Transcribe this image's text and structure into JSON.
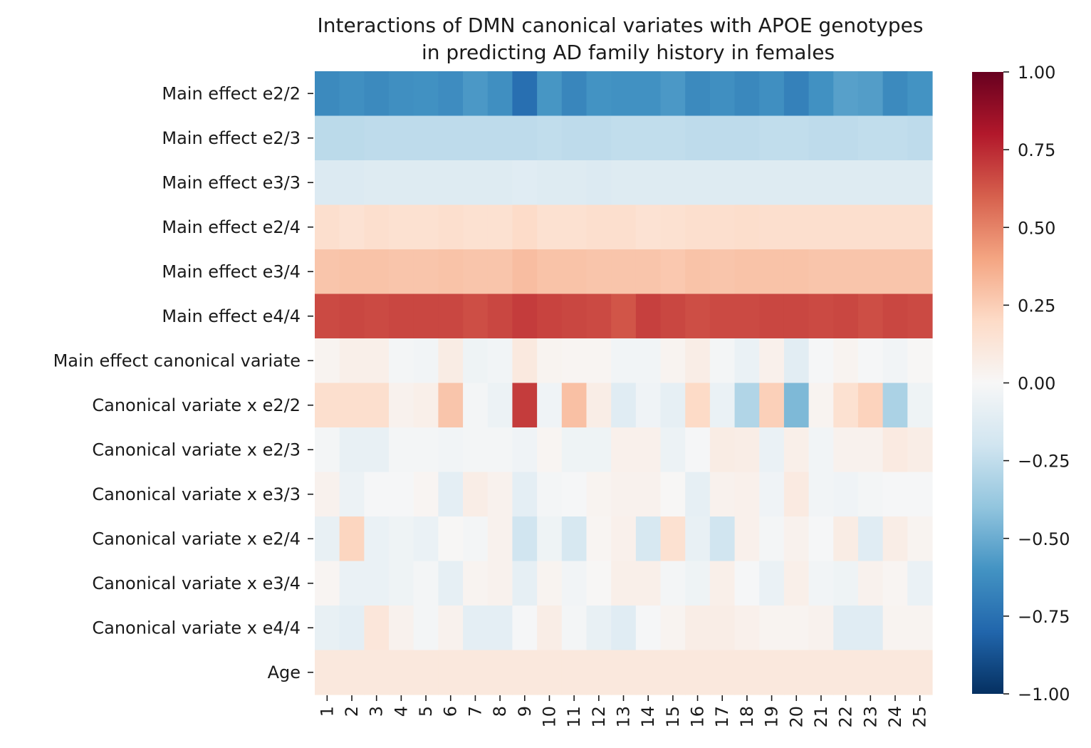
{
  "chart_data": {
    "type": "heatmap",
    "title_lines": [
      "Interactions of DMN canonical variates with APOE genotypes",
      "in predicting AD family history in females"
    ],
    "xlabel": "",
    "ylabel": "",
    "colormap": "RdBu_r",
    "vmin": -1.0,
    "vmax": 1.0,
    "colorbar_ticks": [
      "1.00",
      "0.75",
      "0.50",
      "0.25",
      "0.00",
      "−0.25",
      "−0.50",
      "−0.75",
      "−1.00"
    ],
    "colorbar_tick_values": [
      1.0,
      0.75,
      0.5,
      0.25,
      0.0,
      -0.25,
      -0.5,
      -0.75,
      -1.0
    ],
    "columns": [
      "1",
      "2",
      "3",
      "4",
      "5",
      "6",
      "7",
      "8",
      "9",
      "10",
      "11",
      "12",
      "13",
      "14",
      "15",
      "16",
      "17",
      "18",
      "19",
      "20",
      "21",
      "22",
      "23",
      "24",
      "25"
    ],
    "rows": [
      "Main effect e2/2",
      "Main effect e2/3",
      "Main effect e3/3",
      "Main effect e2/4",
      "Main effect e3/4",
      "Main effect e4/4",
      "Main effect canonical variate",
      "Canonical variate x e2/2",
      "Canonical variate x e2/3",
      "Canonical variate x e3/3",
      "Canonical variate x e2/4",
      "Canonical variate x e3/4",
      "Canonical variate x e4/4",
      "Age"
    ],
    "values": [
      [
        -0.64,
        -0.62,
        -0.64,
        -0.62,
        -0.61,
        -0.63,
        -0.58,
        -0.62,
        -0.76,
        -0.59,
        -0.66,
        -0.6,
        -0.61,
        -0.61,
        -0.58,
        -0.64,
        -0.62,
        -0.65,
        -0.62,
        -0.68,
        -0.61,
        -0.55,
        -0.56,
        -0.64,
        -0.6
      ],
      [
        -0.27,
        -0.27,
        -0.26,
        -0.26,
        -0.26,
        -0.26,
        -0.26,
        -0.26,
        -0.26,
        -0.25,
        -0.26,
        -0.26,
        -0.25,
        -0.25,
        -0.25,
        -0.26,
        -0.26,
        -0.26,
        -0.25,
        -0.25,
        -0.26,
        -0.26,
        -0.25,
        -0.25,
        -0.26
      ],
      [
        -0.14,
        -0.14,
        -0.13,
        -0.13,
        -0.13,
        -0.13,
        -0.13,
        -0.13,
        -0.12,
        -0.13,
        -0.13,
        -0.14,
        -0.13,
        -0.13,
        -0.13,
        -0.13,
        -0.13,
        -0.13,
        -0.13,
        -0.13,
        -0.13,
        -0.13,
        -0.13,
        -0.13,
        -0.13
      ],
      [
        0.17,
        0.15,
        0.17,
        0.16,
        0.16,
        0.17,
        0.16,
        0.16,
        0.19,
        0.16,
        0.16,
        0.17,
        0.17,
        0.15,
        0.16,
        0.17,
        0.17,
        0.18,
        0.17,
        0.17,
        0.17,
        0.17,
        0.17,
        0.17,
        0.17
      ],
      [
        0.28,
        0.29,
        0.29,
        0.28,
        0.28,
        0.29,
        0.28,
        0.28,
        0.31,
        0.29,
        0.29,
        0.28,
        0.28,
        0.28,
        0.27,
        0.29,
        0.28,
        0.29,
        0.29,
        0.29,
        0.28,
        0.28,
        0.28,
        0.28,
        0.28
      ],
      [
        0.66,
        0.67,
        0.66,
        0.67,
        0.67,
        0.67,
        0.65,
        0.67,
        0.7,
        0.68,
        0.67,
        0.66,
        0.63,
        0.69,
        0.67,
        0.65,
        0.66,
        0.66,
        0.67,
        0.67,
        0.66,
        0.67,
        0.65,
        0.67,
        0.66
      ],
      [
        0.03,
        0.06,
        0.06,
        -0.02,
        -0.03,
        0.08,
        -0.05,
        -0.03,
        0.1,
        0.03,
        0.02,
        0.02,
        -0.03,
        -0.03,
        0.03,
        0.07,
        -0.02,
        -0.07,
        0.05,
        -0.11,
        -0.01,
        0.03,
        -0.01,
        -0.03,
        0.01
      ],
      [
        0.17,
        0.17,
        0.17,
        0.04,
        0.06,
        0.28,
        -0.02,
        -0.06,
        0.7,
        -0.04,
        0.3,
        0.07,
        -0.12,
        -0.04,
        -0.09,
        0.2,
        -0.07,
        -0.3,
        0.24,
        -0.45,
        0.03,
        0.16,
        0.23,
        -0.32,
        -0.05
      ],
      [
        -0.02,
        -0.08,
        -0.08,
        -0.02,
        -0.02,
        -0.03,
        -0.02,
        -0.02,
        -0.04,
        0.02,
        -0.05,
        -0.05,
        0.05,
        0.05,
        -0.06,
        -0.01,
        0.08,
        0.07,
        -0.07,
        0.06,
        -0.03,
        0.04,
        0.04,
        0.09,
        0.07
      ],
      [
        0.04,
        -0.06,
        -0.01,
        -0.01,
        0.02,
        -0.1,
        0.07,
        0.04,
        -0.1,
        -0.02,
        -0.01,
        0.03,
        0.04,
        0.04,
        0.01,
        -0.09,
        0.04,
        0.05,
        -0.04,
        0.09,
        -0.03,
        -0.04,
        -0.02,
        -0.01,
        -0.01
      ],
      [
        -0.08,
        0.22,
        -0.07,
        -0.05,
        -0.07,
        0.01,
        -0.02,
        0.04,
        -0.2,
        -0.05,
        -0.17,
        0.02,
        0.05,
        -0.17,
        0.16,
        -0.08,
        -0.2,
        0.05,
        -0.02,
        0.04,
        -0.01,
        0.08,
        -0.12,
        0.07,
        0.03
      ],
      [
        0.02,
        -0.07,
        -0.07,
        -0.05,
        -0.02,
        -0.09,
        0.03,
        0.04,
        -0.09,
        0.03,
        -0.03,
        0.01,
        0.06,
        0.06,
        -0.02,
        -0.05,
        0.06,
        -0.01,
        -0.07,
        0.06,
        -0.03,
        -0.05,
        0.04,
        0.02,
        -0.07
      ],
      [
        -0.08,
        -0.1,
        0.12,
        0.04,
        -0.02,
        0.04,
        -0.1,
        -0.1,
        -0.01,
        0.07,
        -0.02,
        -0.08,
        -0.12,
        -0.01,
        0.03,
        0.07,
        0.07,
        0.05,
        0.03,
        0.03,
        0.04,
        -0.12,
        -0.12,
        0.03,
        0.03
      ],
      [
        0.11,
        0.11,
        0.11,
        0.11,
        0.11,
        0.11,
        0.11,
        0.11,
        0.11,
        0.11,
        0.11,
        0.11,
        0.11,
        0.11,
        0.11,
        0.11,
        0.11,
        0.11,
        0.11,
        0.11,
        0.11,
        0.11,
        0.11,
        0.11,
        0.11
      ]
    ]
  }
}
